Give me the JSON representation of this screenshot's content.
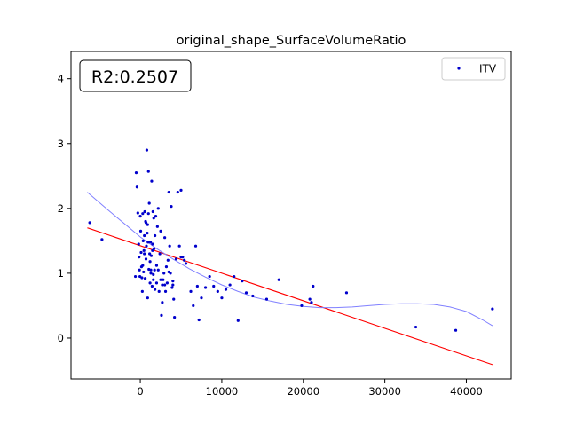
{
  "chart_data": {
    "type": "scatter",
    "title": "original_shape_SurfaceVolumeRatio",
    "xlabel": "",
    "ylabel": "",
    "xlim": [
      -8500,
      45500
    ],
    "ylim": [
      -0.63,
      4.42
    ],
    "xticks": [
      0,
      10000,
      20000,
      30000,
      40000
    ],
    "xtick_labels": [
      "0",
      "10000",
      "20000",
      "30000",
      "40000"
    ],
    "yticks": [
      0,
      1,
      2,
      3,
      4
    ],
    "ytick_labels": [
      "0",
      "1",
      "2",
      "3",
      "4"
    ],
    "grid": false,
    "legend": {
      "placement": "top-right",
      "entries": [
        "ITV"
      ]
    },
    "annotation": "R2:0.2507",
    "colors": {
      "points": "#0000cc",
      "fit_line": "#ff0000",
      "smooth_curve": "#8080ff"
    },
    "series": [
      {
        "name": "ITV",
        "kind": "points",
        "x": [
          -6200,
          -4700,
          -600,
          -500,
          -400,
          -300,
          -200,
          -150,
          -100,
          -50,
          0,
          50,
          100,
          150,
          200,
          250,
          300,
          350,
          400,
          450,
          500,
          550,
          600,
          650,
          700,
          750,
          800,
          850,
          900,
          950,
          1000,
          1050,
          1100,
          1150,
          1200,
          1250,
          1300,
          1350,
          1400,
          1450,
          1500,
          1550,
          1600,
          1650,
          1700,
          1750,
          1800,
          1900,
          2000,
          2100,
          2200,
          2300,
          2400,
          2500,
          2600,
          2700,
          2800,
          2900,
          3000,
          3100,
          3200,
          3300,
          3400,
          3500,
          3600,
          3700,
          3800,
          3900,
          4000,
          4100,
          4200,
          4400,
          4600,
          4800,
          5000,
          5200,
          5400,
          5600,
          6200,
          6500,
          6800,
          7000,
          7200,
          7500,
          8000,
          8500,
          9000,
          9500,
          10000,
          10500,
          11000,
          11500,
          12000,
          12500,
          13000,
          13800,
          15500,
          17000,
          19800,
          20800,
          21000,
          21200,
          25300,
          33800,
          38700,
          43200,
          1000,
          1500,
          3000,
          2500,
          700,
          1200,
          1800,
          2200,
          500,
          300,
          1600,
          2700,
          3500,
          4000,
          5000,
          900,
          1300,
          2000
        ],
        "y": [
          1.78,
          1.52,
          0.95,
          2.55,
          2.33,
          1.93,
          1.45,
          1.25,
          1.05,
          0.95,
          1.88,
          1.65,
          1.32,
          1.1,
          0.93,
          0.72,
          1.92,
          1.5,
          1.02,
          1.35,
          1.58,
          1.95,
          0.92,
          1.8,
          1.22,
          1.42,
          2.9,
          1.62,
          1.75,
          1.48,
          2.57,
          1.06,
          2.08,
          1.3,
          0.85,
          1.48,
          1.0,
          1.27,
          2.42,
          0.8,
          1.45,
          1.95,
          0.9,
          1.85,
          1.38,
          1.05,
          0.75,
          1.88,
          0.85,
          1.72,
          2.0,
          0.72,
          1.3,
          1.65,
          0.35,
          0.55,
          0.9,
          1.0,
          1.55,
          0.72,
          1.1,
          0.85,
          1.2,
          2.25,
          1.42,
          1.0,
          2.03,
          0.78,
          0.82,
          0.6,
          0.32,
          1.22,
          2.25,
          1.42,
          2.28,
          1.25,
          1.2,
          1.15,
          0.72,
          0.5,
          1.42,
          0.8,
          0.28,
          0.62,
          0.78,
          0.95,
          0.8,
          0.72,
          0.62,
          0.75,
          0.82,
          0.95,
          0.27,
          0.88,
          0.7,
          0.65,
          0.6,
          0.9,
          0.5,
          0.6,
          0.55,
          0.8,
          0.7,
          0.17,
          0.12,
          0.45,
          1.92,
          1.35,
          0.82,
          0.9,
          1.78,
          1.18,
          1.58,
          1.05,
          1.3,
          1.12,
          0.98,
          0.82,
          1.02,
          0.88,
          1.25,
          0.62,
          1.05,
          1.12
        ]
      },
      {
        "name": "",
        "kind": "fit-line",
        "x": [
          -6500,
          43200
        ],
        "y": [
          1.7,
          -0.41
        ]
      },
      {
        "name": "",
        "kind": "smooth-curve",
        "x": [
          -6500,
          -4000,
          -2000,
          0,
          2000,
          4000,
          6000,
          8000,
          10000,
          12000,
          14000,
          16000,
          18000,
          20000,
          22000,
          24000,
          26000,
          28000,
          30000,
          32000,
          34000,
          36000,
          38000,
          40000,
          42000,
          43200
        ],
        "y": [
          2.25,
          1.98,
          1.77,
          1.56,
          1.38,
          1.22,
          1.07,
          0.94,
          0.82,
          0.72,
          0.63,
          0.57,
          0.52,
          0.49,
          0.47,
          0.47,
          0.48,
          0.5,
          0.52,
          0.53,
          0.53,
          0.52,
          0.48,
          0.41,
          0.28,
          0.19
        ]
      }
    ]
  }
}
